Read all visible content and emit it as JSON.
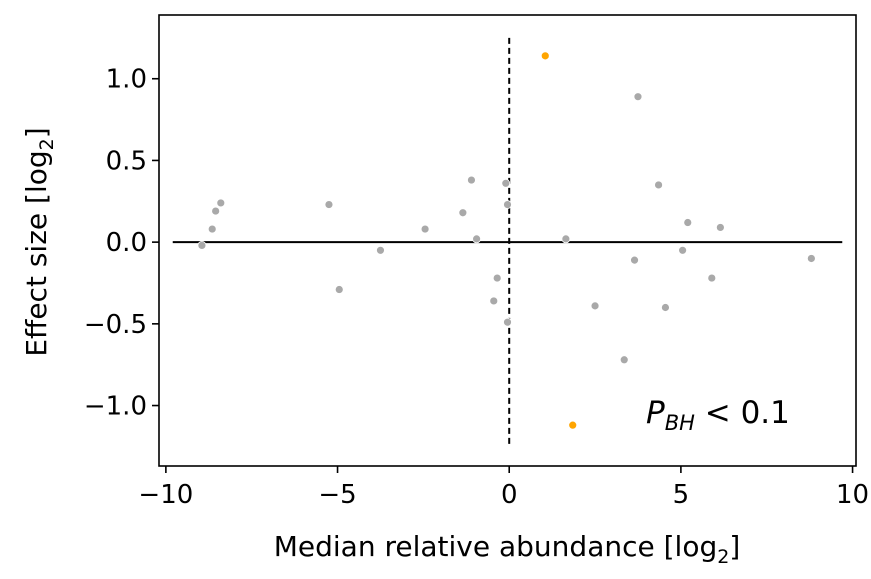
{
  "chart_data": {
    "type": "scatter",
    "xlabel": "Median relative abundance [log",
    "xlabel_sub": "2",
    "xlabel_end": "]",
    "ylabel": "Effect size [log",
    "ylabel_sub": "2",
    "ylabel_end": "]",
    "xlim": [
      -10.2,
      10.1
    ],
    "ylim": [
      -1.37,
      1.39
    ],
    "xticks": [
      -10,
      -5,
      0,
      5,
      10
    ],
    "xtick_labels": [
      "−10",
      "−5",
      "0",
      "5",
      "10"
    ],
    "yticks": [
      1.0,
      0.5,
      0.0,
      -0.5,
      -1.0
    ],
    "ytick_labels": [
      "1.0",
      "0.5",
      "0.0",
      "−0.5",
      "−1.0"
    ],
    "annotation": {
      "main": "P",
      "sub": "BH",
      "rest": " < 0.1"
    },
    "grid": false,
    "colors": {
      "nonsignificant": "#a9a9a9",
      "significant": "#ffa500",
      "lines": "#000000"
    },
    "reference_lines": {
      "horizontal_y": 0.0,
      "horizontal_x_range": [
        -9.8,
        9.7
      ],
      "vertical_x": 0.0,
      "vertical_y_range": [
        -1.25,
        1.25
      ],
      "vertical_style": "dashed"
    },
    "series": [
      {
        "significant": false,
        "x": [
          -8.95,
          -8.65,
          -8.55,
          -8.4,
          -5.25,
          -4.95,
          -3.75,
          -2.45,
          -1.35,
          -1.1,
          -0.95,
          -0.45,
          -0.35,
          -0.1,
          -0.05,
          -0.05,
          1.65,
          2.5,
          3.35,
          3.65,
          3.75,
          4.35,
          4.55,
          5.05,
          5.2,
          5.9,
          6.15,
          8.8
        ],
        "y": [
          -0.02,
          0.08,
          0.19,
          0.24,
          0.23,
          -0.29,
          -0.05,
          0.08,
          0.18,
          0.38,
          0.02,
          -0.36,
          -0.22,
          0.36,
          0.23,
          -0.49,
          0.02,
          -0.39,
          -0.72,
          -0.11,
          0.89,
          0.35,
          -0.4,
          -0.05,
          0.12,
          -0.22,
          0.09,
          -0.1
        ]
      },
      {
        "significant": true,
        "x": [
          1.05,
          1.85
        ],
        "y": [
          1.14,
          -1.12
        ]
      }
    ]
  }
}
